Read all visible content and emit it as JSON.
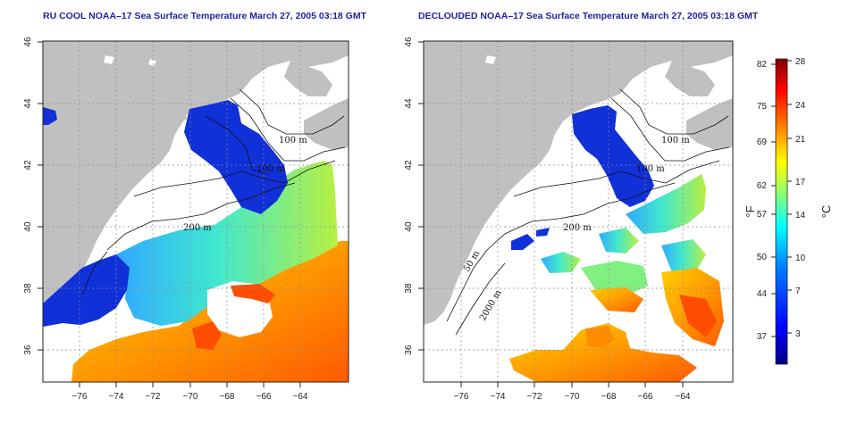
{
  "panels": [
    {
      "id": "left",
      "title": "RU COOL NOAA–17 Sea Surface Temperature March 27, 2005 03:18 GMT",
      "contour_labels": [
        "100 m",
        "100 m",
        "200 m"
      ]
    },
    {
      "id": "right",
      "title": "DECLOUDED NOAA–17 Sea Surface Temperature March 27, 2005 03:18 GMT",
      "contour_labels": [
        "100 m",
        "100 m",
        "200 m",
        "50 m",
        "2000 m"
      ]
    }
  ],
  "axes": {
    "lon_ticks": [
      "−76",
      "−74",
      "−72",
      "−70",
      "−68",
      "−66",
      "−64"
    ],
    "lat_ticks": [
      "46",
      "44",
      "42",
      "40",
      "38",
      "36"
    ]
  },
  "colorbar": {
    "fahrenheit_ticks": [
      "82",
      "75",
      "69",
      "62",
      "57",
      "50",
      "44",
      "37"
    ],
    "celsius_ticks": [
      "28",
      "24",
      "21",
      "17",
      "14",
      "10",
      "7",
      "3"
    ],
    "fahrenheit_unit": "°F",
    "celsius_unit": "°C",
    "colors": [
      "#00007f",
      "#0000ff",
      "#0080ff",
      "#00ffff",
      "#80ff80",
      "#ffff00",
      "#ff8000",
      "#ff0000",
      "#7f0000"
    ]
  },
  "colors": {
    "land": "#c0c0c0",
    "cold_water": "#1030d8",
    "title": "#1f1fa8"
  }
}
